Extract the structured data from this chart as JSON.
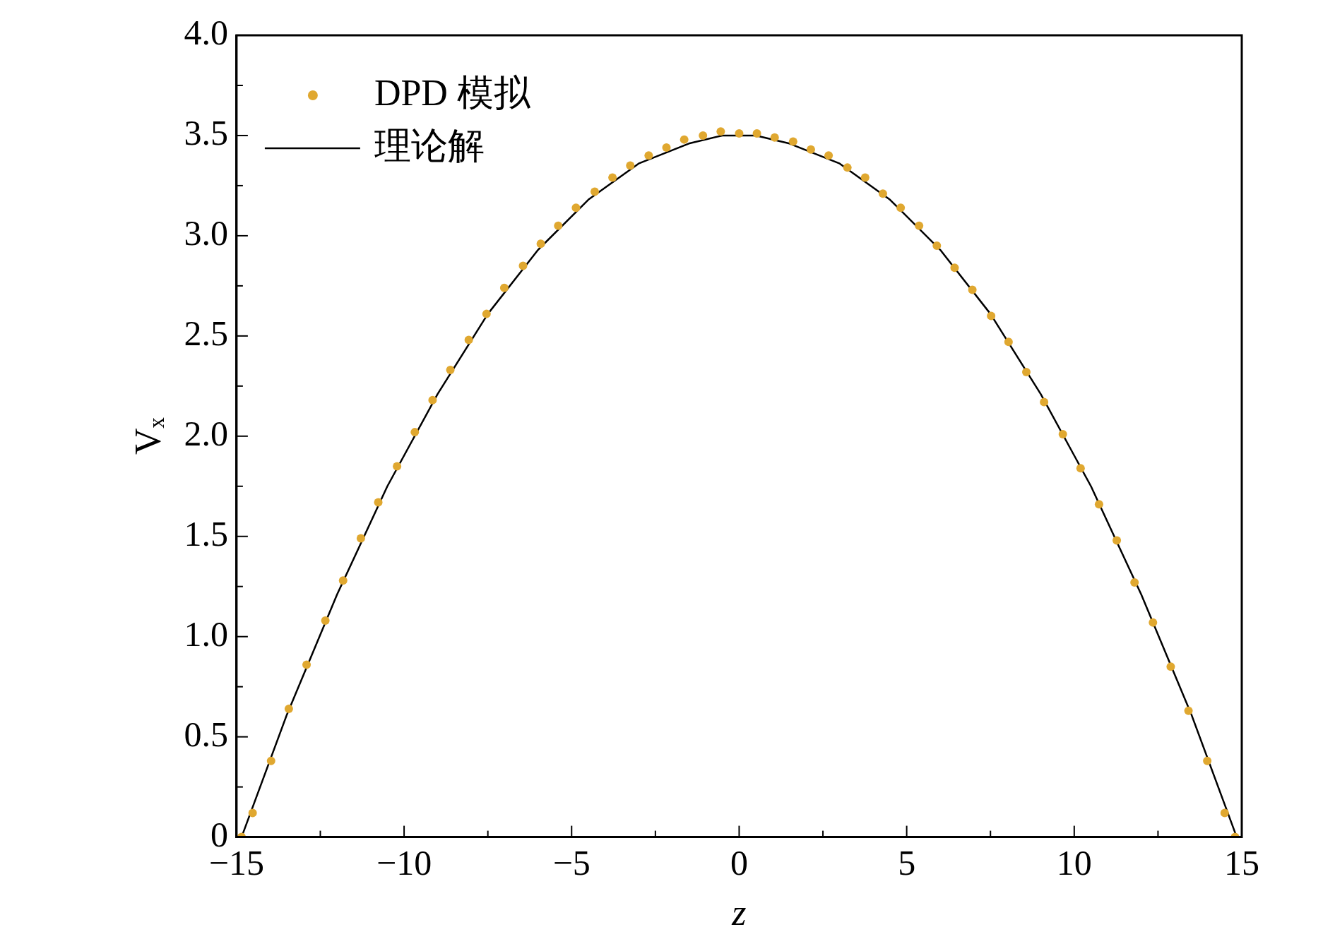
{
  "chart_data": {
    "type": "scatter",
    "xlabel": "z",
    "ylabel": "Vₓ",
    "xlim": [
      -15,
      15
    ],
    "ylim": [
      0,
      4
    ],
    "xticks": [
      -15,
      -10,
      -5,
      0,
      5,
      10,
      15
    ],
    "yticks": [
      0,
      {
        "value": 0.5,
        "label": "0.5"
      },
      {
        "value": 1,
        "label": "1.0"
      },
      {
        "value": 1.5,
        "label": "1.5"
      },
      {
        "value": 2,
        "label": "2.0"
      },
      {
        "value": 2.5,
        "label": "2.5"
      },
      {
        "value": 3,
        "label": "3.0"
      },
      {
        "value": 3.5,
        "label": "3.5"
      },
      {
        "value": 4,
        "label": "4.0"
      }
    ],
    "grid": false,
    "legend": "top left",
    "series": [
      {
        "name": "DPD 模拟",
        "marker": "circle",
        "color": "#e0a830",
        "x": [
          -14.85,
          -14.52,
          -13.97,
          -13.44,
          -12.91,
          -12.35,
          -11.82,
          -11.29,
          -10.77,
          -10.21,
          -9.68,
          -9.15,
          -8.62,
          -8.07,
          -7.54,
          -7.01,
          -6.45,
          -5.92,
          -5.4,
          -4.87,
          -4.31,
          -3.78,
          -3.25,
          -2.7,
          -2.17,
          -1.64,
          -1.08,
          -0.55,
          0,
          0.53,
          1.06,
          1.61,
          2.14,
          2.67,
          3.23,
          3.76,
          4.29,
          4.82,
          5.37,
          5.9,
          6.43,
          6.96,
          7.52,
          8.04,
          8.57,
          9.1,
          9.66,
          10.19,
          10.74,
          11.27,
          11.8,
          12.35,
          12.88,
          13.41,
          13.97,
          14.49,
          14.8
        ],
        "values": [
          0,
          0.12,
          0.38,
          0.64,
          0.86,
          1.08,
          1.28,
          1.49,
          1.67,
          1.85,
          2.02,
          2.18,
          2.33,
          2.48,
          2.61,
          2.74,
          2.85,
          2.96,
          3.05,
          3.14,
          3.22,
          3.29,
          3.35,
          3.4,
          3.44,
          3.48,
          3.5,
          3.52,
          3.51,
          3.51,
          3.49,
          3.47,
          3.43,
          3.4,
          3.34,
          3.29,
          3.21,
          3.14,
          3.05,
          2.95,
          2.84,
          2.73,
          2.6,
          2.47,
          2.32,
          2.17,
          2.01,
          1.84,
          1.66,
          1.48,
          1.27,
          1.07,
          0.85,
          0.63,
          0.38,
          0.12,
          0
        ]
      },
      {
        "name": "理论解",
        "type": "line",
        "marker": "none",
        "line_style": "solid",
        "color": "#000000",
        "x": [
          -14.85,
          -13.5,
          -12,
          -10.5,
          -9,
          -7.5,
          -6,
          -4.5,
          -3,
          -1.5,
          -0.5,
          0.5,
          1.5,
          3,
          4.5,
          6,
          7.5,
          9,
          10.5,
          12,
          13.5,
          14.85
        ],
        "values": [
          0,
          0.61,
          1.21,
          1.75,
          2.21,
          2.61,
          2.93,
          3.18,
          3.36,
          3.46,
          3.5,
          3.5,
          3.46,
          3.36,
          3.18,
          2.93,
          2.61,
          2.21,
          1.75,
          1.21,
          0.61,
          0
        ]
      }
    ]
  }
}
